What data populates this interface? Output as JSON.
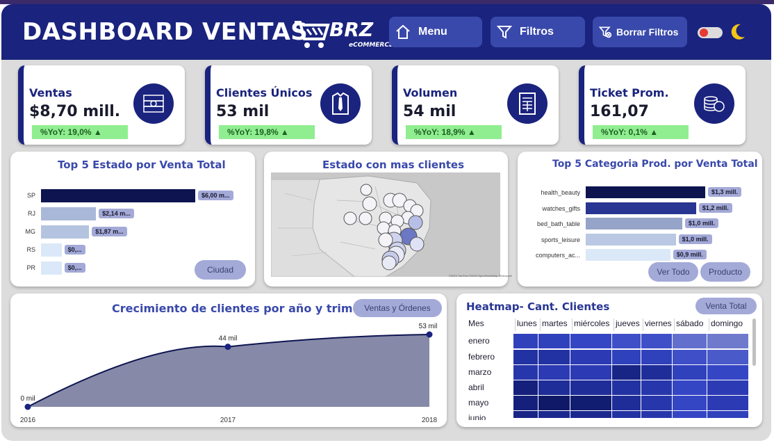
{
  "header": {
    "title": "DASHBOARD VENTAS",
    "logo_text": "BRZ",
    "logo_sub": "eCOMMERCE",
    "buttons": [
      {
        "label": "Menu",
        "icon": "home-icon"
      },
      {
        "label": "Filtros",
        "icon": "filter-icon"
      },
      {
        "label": "Borrar Filtros",
        "icon": "clear-filter-icon"
      }
    ],
    "theme_icon": "moon-icon"
  },
  "kpis": [
    {
      "label": "Ventas",
      "value": "$8,70 mill.",
      "yoy": "%YoY: 19,0% ▲",
      "icon": "money-icon"
    },
    {
      "label": "Clientes Únicos",
      "value": "53 mil",
      "yoy": "%YoY: 19,8% ▲",
      "icon": "shirt-tie-icon"
    },
    {
      "label": "Volumen",
      "value": "54 mil",
      "yoy": "%YoY: 18,9% ▲",
      "icon": "receipt-icon"
    },
    {
      "label": "Ticket Prom.",
      "value": "161,07",
      "yoy": "%YoY: 0,1% ▲",
      "icon": "coins-icon"
    }
  ],
  "top5_estado": {
    "title": "Top 5 Estado por Venta Total",
    "button": "Ciudad",
    "bars": [
      {
        "label": "SP",
        "value": 6.0,
        "text": "$6,00 m...",
        "color": "#0d1450"
      },
      {
        "label": "RJ",
        "value": 2.14,
        "text": "$2,14 m...",
        "color": "#a9b8d8"
      },
      {
        "label": "MG",
        "value": 1.87,
        "text": "$1,87 m...",
        "color": "#b4c4e0"
      },
      {
        "label": "RS",
        "value": 0.8,
        "text": "$0,...",
        "color": "#dbe8f8"
      },
      {
        "label": "PR",
        "value": 0.8,
        "text": "$0,...",
        "color": "#dbe8f8"
      }
    ]
  },
  "map": {
    "title": "Estado con mas clientes",
    "attribution": "©2024 TomTom ©2024 OpenStreetMap ©Microsoft"
  },
  "top5_categoria": {
    "title": "Top 5 Categoria Prod. por Venta Total",
    "buttons": [
      "Ver Todo",
      "Producto"
    ],
    "bars": [
      {
        "label": "health_beauty",
        "value": 1.3,
        "text": "$1,3 mill.",
        "color": "#0d1450"
      },
      {
        "label": "watches_gifts",
        "value": 1.2,
        "text": "$1,2 mill.",
        "color": "#283593"
      },
      {
        "label": "bed_bath_table",
        "value": 1.05,
        "text": "$1,0 mill.",
        "color": "#95a4c8"
      },
      {
        "label": "sports_leisure",
        "value": 0.98,
        "text": "$1,0 mill.",
        "color": "#bac8e4"
      },
      {
        "label": "computers_ac...",
        "value": 0.92,
        "text": "$0,9 mill.",
        "color": "#dbe8f8"
      }
    ]
  },
  "crecimiento": {
    "title": "Crecimiento de clientes por año y trimestres",
    "button": "Ventas y Órdenes"
  },
  "heatmap": {
    "title": "Heatmap- Cant. Clientes",
    "button": "Venta Total",
    "header": "Mes",
    "days": [
      "lunes",
      "martes",
      "miércoles",
      "jueves",
      "viernes",
      "sábado",
      "domingo"
    ],
    "months": [
      "enero",
      "febrero",
      "marzo",
      "abril",
      "mayo",
      "junio"
    ],
    "levels": [
      [
        0.55,
        0.55,
        0.5,
        0.45,
        0.45,
        0.3,
        0.25
      ],
      [
        0.7,
        0.7,
        0.6,
        0.55,
        0.55,
        0.45,
        0.4
      ],
      [
        0.65,
        0.6,
        0.6,
        0.85,
        0.75,
        0.55,
        0.5
      ],
      [
        0.9,
        0.75,
        0.75,
        0.7,
        0.65,
        0.5,
        0.6
      ],
      [
        0.9,
        1.0,
        0.95,
        0.75,
        0.65,
        0.5,
        0.6
      ],
      [
        0.85,
        0.8,
        0.8,
        0.7,
        0.65,
        0.5,
        0.55
      ]
    ]
  },
  "chart_data": [
    {
      "type": "bar",
      "title": "Top 5 Estado por Venta Total",
      "categories": [
        "SP",
        "RJ",
        "MG",
        "RS",
        "PR"
      ],
      "values": [
        6.0,
        2.14,
        1.87,
        0.8,
        0.8
      ],
      "data_labels": [
        "$6,00 m...",
        "$2,14 m...",
        "$1,87 m...",
        "$0,...",
        "$0,..."
      ]
    },
    {
      "type": "bar",
      "title": "Top 5 Categoria Prod. por Venta Total",
      "categories": [
        "health_beauty",
        "watches_gifts",
        "bed_bath_table",
        "sports_leisure",
        "computers_ac..."
      ],
      "values": [
        1.3,
        1.2,
        1.0,
        1.0,
        0.9
      ],
      "data_labels": [
        "$1,3 mill.",
        "$1,2 mill.",
        "$1,0 mill.",
        "$1,0 mill.",
        "$0,9 mill."
      ]
    },
    {
      "type": "area",
      "title": "Crecimiento de clientes por año y trimestres",
      "x": [
        "2016",
        "2017",
        "2018"
      ],
      "values": [
        0,
        44,
        53
      ],
      "data_labels": [
        "0 mil",
        "44 mil",
        "53 mil"
      ],
      "ylim": [
        0,
        53
      ]
    },
    {
      "type": "heatmap",
      "title": "Heatmap- Cant. Clientes",
      "x": [
        "lunes",
        "martes",
        "miércoles",
        "jueves",
        "viernes",
        "sábado",
        "domingo"
      ],
      "y": [
        "enero",
        "febrero",
        "marzo",
        "abril",
        "mayo",
        "junio"
      ],
      "values": [
        [
          0.55,
          0.55,
          0.5,
          0.45,
          0.45,
          0.3,
          0.25
        ],
        [
          0.7,
          0.7,
          0.6,
          0.55,
          0.55,
          0.45,
          0.4
        ],
        [
          0.65,
          0.6,
          0.6,
          0.85,
          0.75,
          0.55,
          0.5
        ],
        [
          0.9,
          0.75,
          0.75,
          0.7,
          0.65,
          0.5,
          0.6
        ],
        [
          0.9,
          1.0,
          0.95,
          0.75,
          0.65,
          0.5,
          0.6
        ],
        [
          0.85,
          0.8,
          0.8,
          0.7,
          0.65,
          0.5,
          0.55
        ]
      ]
    }
  ]
}
